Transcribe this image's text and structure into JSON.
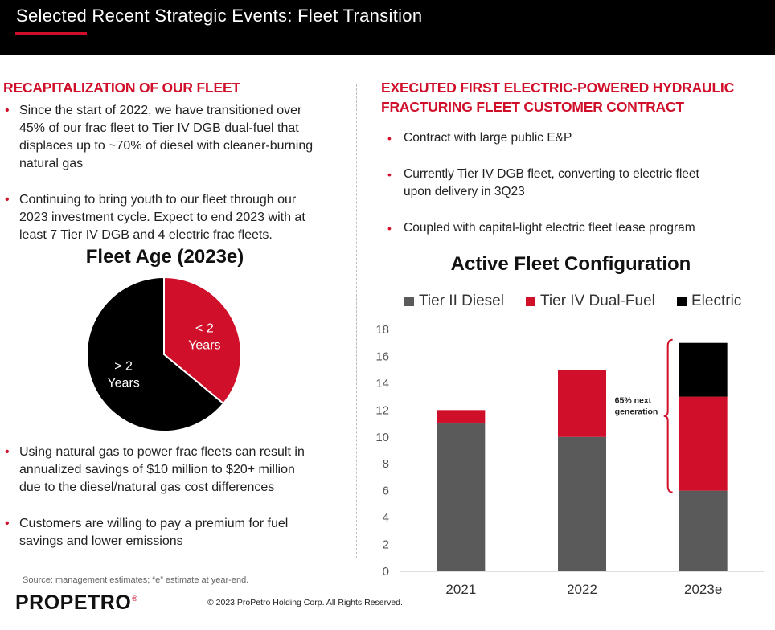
{
  "header": {
    "title": "Selected Recent Strategic Events: Fleet Transition"
  },
  "left": {
    "title": "RECAPITALIZATION OF OUR FLEET",
    "bullets_top": [
      [
        "Since the start of 2022, we have transitioned over",
        "45% of our frac fleet to Tier IV DGB dual-fuel that",
        "displaces up to ~70% of diesel with cleaner-burning",
        "natural gas"
      ],
      [
        "Continuing to bring youth to our fleet through our",
        "2023 investment cycle. Expect to end 2023 with at",
        "least 7 Tier IV DGB and 4 electric frac fleets."
      ]
    ],
    "bullets_bottom": [
      [
        "Using natural gas to power frac fleets can result in",
        "annualized savings of $10 million to $20+ million",
        "due to the diesel/natural gas cost differences"
      ],
      [
        "Customers are willing to pay a premium for fuel",
        "savings and lower emissions"
      ]
    ],
    "bullet_symbol": "•"
  },
  "pie": {
    "title": "Fleet Age (2023e)",
    "slices": [
      {
        "label_line1": "< 2",
        "label_line2": "Years",
        "value": 36,
        "color": "#d0102b"
      },
      {
        "label_line1": "> 2",
        "label_line2": "Years",
        "value": 64,
        "color": "#000000"
      }
    ]
  },
  "right": {
    "title_line1": "EXECUTED FIRST ELECTRIC-POWERED HYDRAULIC",
    "title_line2": "FRACTURING FLEET CUSTOMER CONTRACT",
    "bullets": [
      [
        "Contract with large public E&P"
      ],
      [
        "Currently Tier IV DGB fleet, converting to electric fleet",
        "upon delivery in 3Q23"
      ],
      [
        "Coupled with capital-light electric fleet lease program"
      ]
    ]
  },
  "chart_data": {
    "type": "bar",
    "title": "Active Fleet Configuration",
    "categories": [
      "2021",
      "2022",
      "2023e"
    ],
    "series": [
      {
        "name": "Tier II Diesel",
        "values": [
          11,
          10,
          6
        ],
        "color": "#5a5a5a"
      },
      {
        "name": "Tier IV Dual-Fuel",
        "values": [
          1,
          5,
          7
        ],
        "color": "#d0102b"
      },
      {
        "name": "Electric",
        "values": [
          0,
          0,
          4
        ],
        "color": "#000000"
      }
    ],
    "ylim": [
      0,
      18
    ],
    "yticks": [
      "0",
      "2",
      "4",
      "6",
      "8",
      "10",
      "12",
      "14",
      "16",
      "18"
    ],
    "stacked": true,
    "legend": "top",
    "annotation": {
      "line1": "65% next",
      "line2": "generation"
    }
  },
  "footer": {
    "source": "Source: management estimates; “e” estimate at year-end.",
    "logo_text": "PROPETRO",
    "logo_reg": "®",
    "copyright": "© 2023 ProPetro Holding Corp. All Rights Reserved."
  }
}
